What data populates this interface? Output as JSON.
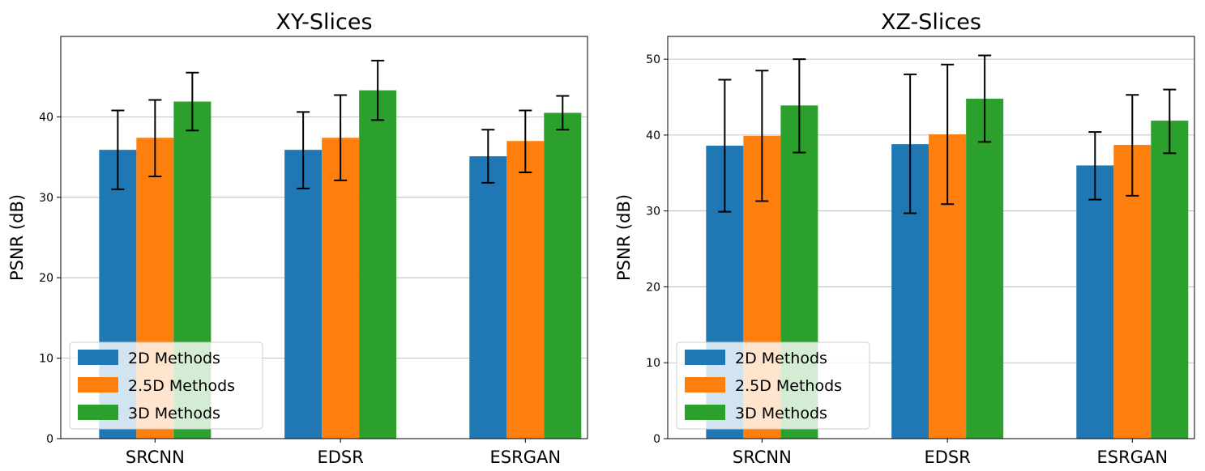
{
  "chart_data": [
    {
      "type": "bar",
      "title": "XY-Slices",
      "xlabel": "",
      "ylabel": "PSNR (dB)",
      "ylim": [
        0,
        50
      ],
      "yticks": [
        0,
        10,
        20,
        30,
        40
      ],
      "grid": "y",
      "legend_position": "lower-left",
      "categories": [
        "SRCNN",
        "EDSR",
        "ESRGAN"
      ],
      "series": [
        {
          "name": "2D Methods",
          "color": "#1f77b4",
          "values": [
            35.9,
            35.9,
            35.1
          ],
          "err_low": [
            31.0,
            31.1,
            31.8
          ],
          "err_high": [
            40.8,
            40.6,
            38.4
          ]
        },
        {
          "name": "2.5D Methods",
          "color": "#ff7f0e",
          "values": [
            37.4,
            37.4,
            37.0
          ],
          "err_low": [
            32.6,
            32.1,
            33.1
          ],
          "err_high": [
            42.1,
            42.7,
            40.8
          ]
        },
        {
          "name": "3D Methods",
          "color": "#2ca02c",
          "values": [
            41.9,
            43.3,
            40.5
          ],
          "err_low": [
            38.3,
            39.6,
            38.4
          ],
          "err_high": [
            45.5,
            47.0,
            42.6
          ]
        }
      ]
    },
    {
      "type": "bar",
      "title": "XZ-Slices",
      "xlabel": "",
      "ylabel": "PSNR (dB)",
      "ylim": [
        0,
        53
      ],
      "yticks": [
        0,
        10,
        20,
        30,
        40,
        50
      ],
      "grid": "y",
      "legend_position": "lower-left",
      "categories": [
        "SRCNN",
        "EDSR",
        "ESRGAN"
      ],
      "series": [
        {
          "name": "2D Methods",
          "color": "#1f77b4",
          "values": [
            38.6,
            38.8,
            36.0
          ],
          "err_low": [
            29.9,
            29.7,
            31.5
          ],
          "err_high": [
            47.3,
            48.0,
            40.4
          ]
        },
        {
          "name": "2.5D Methods",
          "color": "#ff7f0e",
          "values": [
            39.9,
            40.1,
            38.7
          ],
          "err_low": [
            31.3,
            30.9,
            32.0
          ],
          "err_high": [
            48.5,
            49.3,
            45.3
          ]
        },
        {
          "name": "3D Methods",
          "color": "#2ca02c",
          "values": [
            43.9,
            44.8,
            41.9
          ],
          "err_low": [
            37.7,
            39.1,
            37.6
          ],
          "err_high": [
            50.0,
            50.5,
            46.0
          ]
        }
      ]
    }
  ]
}
